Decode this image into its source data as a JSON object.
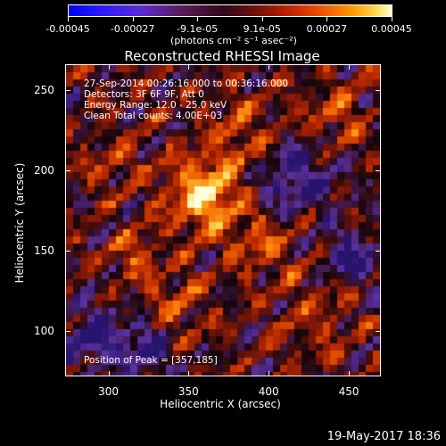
{
  "colorbar": {
    "tick_labels": [
      "-0.00045",
      "-0.00027",
      "-9.1e-05",
      "9.1e-05",
      "0.00027",
      "0.00045"
    ],
    "tick_values": [
      -0.00045,
      -0.00027,
      -9.1e-05,
      9.1e-05,
      0.00027,
      0.00045
    ],
    "units": "(photons cm⁻² s⁻¹ asec⁻²)"
  },
  "plot": {
    "title": "Reconstructed RHESSI Image",
    "annotations": {
      "time": "27-Sep-2014 00:26:16.000 to 00:36:16.000",
      "detectors": "Detectors: 3F 6F 9F, Att 0",
      "energy": "Energy Range: 12.0 - 25.0 keV",
      "clean": "Clean     Total counts: 4.00E+03",
      "peak": "Position of Peak = [357,185]"
    },
    "xlabel": "Heliocentric X (arcsec)",
    "ylabel": "Heliocentric Y (arcsec)",
    "xticks": [
      "300",
      "350",
      "400",
      "450"
    ],
    "xtick_values": [
      300,
      350,
      400,
      450
    ],
    "yticks": [
      "100",
      "150",
      "200",
      "250"
    ],
    "ytick_values": [
      100,
      150,
      200,
      250
    ],
    "xlim": [
      273,
      470
    ],
    "ylim": [
      72,
      266
    ]
  },
  "timestamp": "19-May-2017 18:36"
}
